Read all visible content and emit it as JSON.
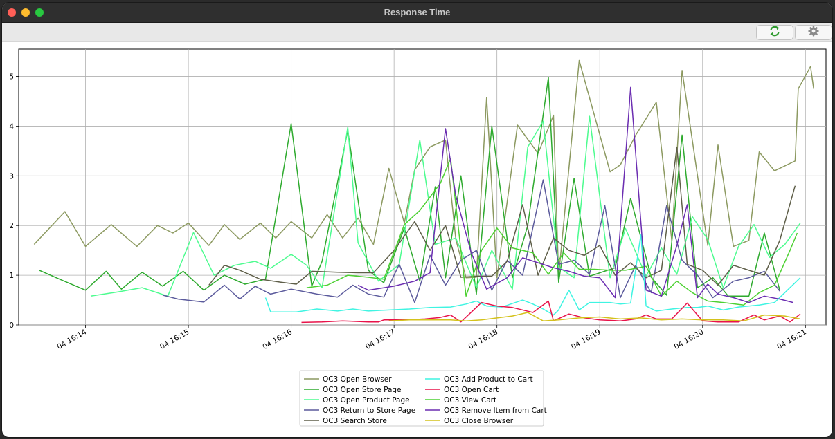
{
  "window": {
    "title": "Response Time"
  },
  "toolbar": {
    "refresh_icon": "refresh-icon",
    "settings_icon": "gear-icon"
  },
  "chart_data": {
    "type": "line",
    "title": "",
    "xlabel": "",
    "ylabel": "",
    "x_ticks": [
      "04 16:14",
      "04 16:15",
      "04 16:16",
      "04 16:17",
      "04 16:18",
      "04 16:19",
      "04 16:20",
      "04 16:21"
    ],
    "x_range": [
      13.35,
      21.2
    ],
    "y_ticks": [
      "0",
      "1",
      "2",
      "3",
      "4",
      "5"
    ],
    "ylim": [
      0,
      5.55
    ],
    "grid": true,
    "legend": "bottom-center",
    "series": [
      {
        "name": "OC3 Open Browser",
        "color": "#8c9960",
        "x": [
          13.5,
          13.8,
          14.0,
          14.25,
          14.5,
          14.7,
          14.85,
          15.0,
          15.2,
          15.35,
          15.5,
          15.7,
          15.85,
          16.0,
          16.2,
          16.35,
          16.5,
          16.65,
          16.8,
          16.95,
          17.1,
          17.2,
          17.35,
          17.5,
          17.6,
          17.7,
          17.8,
          17.9,
          18.0,
          18.2,
          18.4,
          18.55,
          18.6,
          18.8,
          19.1,
          19.2,
          19.35,
          19.55,
          19.7,
          19.8,
          20.05,
          20.15,
          20.3,
          20.45,
          20.55,
          20.7,
          20.9,
          20.93,
          21.05,
          21.08
        ],
        "y": [
          1.62,
          2.28,
          1.58,
          2.02,
          1.58,
          2.0,
          1.85,
          2.05,
          1.6,
          2.02,
          1.72,
          2.05,
          1.75,
          2.08,
          1.75,
          2.22,
          1.75,
          2.15,
          1.62,
          3.15,
          2.05,
          3.12,
          3.58,
          3.72,
          1.72,
          0.95,
          0.96,
          4.58,
          0.95,
          4.02,
          3.45,
          4.22,
          0.98,
          5.32,
          3.08,
          3.22,
          3.82,
          4.48,
          1.7,
          5.12,
          1.6,
          3.62,
          1.58,
          1.7,
          3.48,
          3.1,
          3.3,
          4.75,
          5.2,
          4.75
        ]
      },
      {
        "name": "OC3 Open Store Page",
        "color": "#2eaa2e",
        "x": [
          13.55,
          13.75,
          14.0,
          14.2,
          14.35,
          14.55,
          14.75,
          14.95,
          15.15,
          15.35,
          15.55,
          15.75,
          16.0,
          16.2,
          16.3,
          16.55,
          16.75,
          16.9,
          17.1,
          17.25,
          17.4,
          17.5,
          17.65,
          17.8,
          17.95,
          18.15,
          18.3,
          18.5,
          18.6,
          18.75,
          18.9,
          19.15,
          19.3,
          19.5,
          19.65,
          19.8,
          19.95,
          20.1,
          20.25,
          20.45,
          20.6,
          20.75
        ],
        "y": [
          1.1,
          0.92,
          0.7,
          1.08,
          0.72,
          1.06,
          0.78,
          1.08,
          0.7,
          1.0,
          0.82,
          0.92,
          4.05,
          0.78,
          1.28,
          3.92,
          1.1,
          0.85,
          1.95,
          0.88,
          2.78,
          0.95,
          3.0,
          0.62,
          4.0,
          0.95,
          2.0,
          4.98,
          0.86,
          2.95,
          0.98,
          1.15,
          2.55,
          0.96,
          0.6,
          3.82,
          0.75,
          0.95,
          0.58,
          0.58,
          1.85,
          0.7
        ]
      },
      {
        "name": "OC3 Open Product Page",
        "color": "#4dfc8f",
        "x": [
          14.05,
          14.3,
          14.55,
          14.8,
          15.05,
          15.25,
          15.45,
          15.65,
          15.8,
          16.0,
          16.15,
          16.3,
          16.55,
          16.65,
          16.85,
          17.05,
          17.25,
          17.4,
          17.6,
          17.8,
          17.95,
          18.15,
          18.3,
          18.45,
          18.6,
          18.75,
          18.9,
          19.1,
          19.25,
          19.45,
          19.6,
          19.75,
          19.9,
          20.05,
          20.2,
          20.35,
          20.5,
          20.65,
          20.8,
          20.95
        ],
        "y": [
          0.58,
          0.66,
          0.75,
          0.58,
          1.86,
          1.0,
          1.2,
          1.28,
          1.14,
          1.42,
          1.2,
          0.75,
          3.98,
          1.65,
          0.88,
          1.22,
          3.72,
          1.62,
          1.75,
          0.75,
          1.5,
          0.72,
          3.58,
          4.1,
          1.16,
          0.95,
          4.2,
          0.95,
          1.94,
          0.98,
          1.55,
          1.02,
          2.18,
          1.72,
          0.75,
          1.58,
          2.02,
          1.36,
          1.62,
          2.05
        ]
      },
      {
        "name": "OC3 Return to Store Page",
        "color": "#5b5a9c",
        "x": [
          14.75,
          14.9,
          15.15,
          15.35,
          15.5,
          15.65,
          15.8,
          16.0,
          16.25,
          16.45,
          16.6,
          16.75,
          16.9,
          17.05,
          17.2,
          17.35,
          17.5,
          17.65,
          17.8,
          17.95,
          18.1,
          18.25,
          18.45,
          18.6,
          18.75,
          18.9,
          19.05,
          19.2,
          19.35,
          19.5,
          19.65,
          19.8,
          19.95,
          20.1,
          20.3,
          20.45,
          20.6,
          20.75
        ],
        "y": [
          0.6,
          0.52,
          0.46,
          0.8,
          0.52,
          0.78,
          0.62,
          0.72,
          0.62,
          0.56,
          0.8,
          0.62,
          0.56,
          1.22,
          0.45,
          1.4,
          0.8,
          1.3,
          1.5,
          0.7,
          1.3,
          1.0,
          2.92,
          1.22,
          1.3,
          1.02,
          2.4,
          0.55,
          1.2,
          0.65,
          2.4,
          1.3,
          1.0,
          0.55,
          0.88,
          0.95,
          1.08,
          0.68
        ]
      },
      {
        "name": "OC3 Search Store",
        "color": "#5e5e48",
        "x": [
          15.2,
          15.35,
          15.5,
          15.7,
          15.9,
          16.05,
          16.2,
          16.45,
          16.65,
          16.8,
          17.0,
          17.2,
          17.35,
          17.5,
          17.65,
          17.8,
          17.95,
          18.1,
          18.25,
          18.4,
          18.55,
          18.7,
          18.85,
          19.0,
          19.15,
          19.3,
          19.45,
          19.6,
          19.75,
          19.85,
          20.0,
          20.15,
          20.3,
          20.45,
          20.6,
          20.75,
          20.9
        ],
        "y": [
          0.8,
          1.2,
          1.1,
          0.92,
          0.86,
          0.82,
          1.08,
          1.06,
          1.05,
          1.05,
          1.5,
          2.08,
          1.5,
          2.0,
          0.96,
          0.98,
          0.98,
          1.28,
          2.42,
          1.0,
          1.75,
          1.5,
          1.4,
          1.6,
          1.0,
          1.25,
          0.95,
          1.1,
          3.58,
          1.22,
          1.1,
          0.8,
          1.2,
          1.1,
          1.0,
          1.7,
          2.8
        ]
      },
      {
        "name": "OC3 Add Product to Cart",
        "color": "#3ff4e2",
        "x": [
          15.75,
          15.8,
          16.05,
          16.25,
          16.45,
          16.6,
          16.75,
          16.95,
          17.15,
          17.35,
          17.55,
          17.7,
          17.8,
          17.9,
          18.05,
          18.25,
          18.35,
          18.45,
          18.55,
          18.6,
          18.7,
          18.8,
          18.9,
          19.0,
          19.1,
          19.2,
          19.3,
          19.4,
          19.45,
          19.55,
          19.7,
          19.85,
          19.95,
          20.05,
          20.2,
          20.35,
          20.55,
          20.7,
          20.85,
          20.95
        ],
        "y": [
          0.55,
          0.26,
          0.26,
          0.32,
          0.28,
          0.32,
          0.28,
          0.3,
          0.32,
          0.35,
          0.36,
          0.42,
          0.48,
          0.38,
          0.36,
          0.5,
          0.42,
          0.32,
          0.2,
          0.3,
          0.7,
          0.3,
          0.45,
          0.45,
          0.45,
          0.42,
          0.44,
          1.82,
          0.38,
          0.28,
          0.32,
          0.35,
          0.35,
          0.38,
          0.3,
          0.36,
          0.4,
          0.45,
          0.75,
          0.95
        ]
      },
      {
        "name": "OC3 Open Cart",
        "color": "#e8134a",
        "x": [
          16.1,
          16.3,
          16.5,
          16.75,
          16.85,
          16.9,
          17.1,
          17.3,
          17.45,
          17.55,
          17.65,
          17.85,
          18.0,
          18.15,
          18.35,
          18.5,
          18.55,
          18.7,
          18.85,
          19.0,
          19.2,
          19.35,
          19.45,
          19.55,
          19.7,
          19.85,
          20.0,
          20.15,
          20.35,
          20.5,
          20.6,
          20.75,
          20.85,
          20.95
        ],
        "y": [
          0.05,
          0.06,
          0.08,
          0.06,
          0.06,
          0.1,
          0.1,
          0.12,
          0.15,
          0.2,
          0.06,
          0.45,
          0.38,
          0.35,
          0.25,
          0.48,
          0.08,
          0.22,
          0.14,
          0.1,
          0.08,
          0.12,
          0.2,
          0.12,
          0.12,
          0.44,
          0.08,
          0.06,
          0.06,
          0.2,
          0.1,
          0.18,
          0.06,
          0.22
        ]
      },
      {
        "name": "OC3 View Cart",
        "color": "#4dd132",
        "x": [
          16.15,
          16.35,
          16.55,
          16.75,
          16.9,
          17.1,
          17.25,
          17.45,
          17.55,
          17.7,
          17.85,
          18.0,
          18.15,
          18.35,
          18.5,
          18.65,
          18.8,
          18.95,
          19.1,
          19.25,
          19.45,
          19.6,
          19.75,
          19.9,
          20.05,
          20.2,
          20.4,
          20.55,
          20.7,
          20.85,
          20.92
        ],
        "y": [
          0.75,
          0.8,
          1.0,
          0.96,
          0.92,
          2.02,
          2.3,
          2.85,
          3.35,
          0.58,
          1.5,
          1.95,
          1.55,
          1.45,
          1.02,
          1.45,
          1.12,
          1.12,
          1.1,
          1.1,
          1.18,
          0.58,
          0.88,
          0.65,
          0.48,
          0.45,
          0.4,
          0.65,
          0.8,
          1.5,
          1.85
        ]
      },
      {
        "name": "OC3 Remove Item from Cart",
        "color": "#6b2db1",
        "x": [
          16.65,
          16.75,
          17.0,
          17.2,
          17.35,
          17.5,
          17.6,
          17.75,
          17.9,
          18.1,
          18.25,
          18.4,
          18.55,
          18.7,
          18.85,
          19.0,
          19.15,
          19.3,
          19.45,
          19.6,
          19.75,
          19.85,
          19.95,
          20.05,
          20.15,
          20.3,
          20.45,
          20.6,
          20.75,
          20.88
        ],
        "y": [
          0.8,
          0.7,
          0.78,
          0.88,
          1.05,
          3.95,
          2.6,
          1.45,
          0.72,
          0.95,
          1.35,
          1.25,
          1.15,
          1.08,
          0.98,
          0.95,
          0.55,
          4.78,
          0.7,
          0.58,
          1.6,
          2.42,
          0.55,
          0.82,
          0.62,
          0.55,
          0.45,
          0.58,
          0.52,
          0.45
        ]
      },
      {
        "name": "OC3 Close Browser",
        "color": "#d4c21c",
        "x": [
          16.95,
          17.15,
          17.35,
          17.55,
          17.7,
          17.85,
          18.0,
          18.15,
          18.3,
          18.45,
          18.6,
          18.8,
          19.0,
          19.2,
          19.4,
          19.6,
          19.8,
          20.0,
          20.2,
          20.4,
          20.6,
          20.8,
          20.95
        ],
        "y": [
          0.08,
          0.1,
          0.1,
          0.1,
          0.08,
          0.1,
          0.14,
          0.18,
          0.25,
          0.08,
          0.1,
          0.14,
          0.16,
          0.12,
          0.14,
          0.1,
          0.12,
          0.1,
          0.1,
          0.08,
          0.2,
          0.18,
          0.12
        ]
      }
    ]
  }
}
